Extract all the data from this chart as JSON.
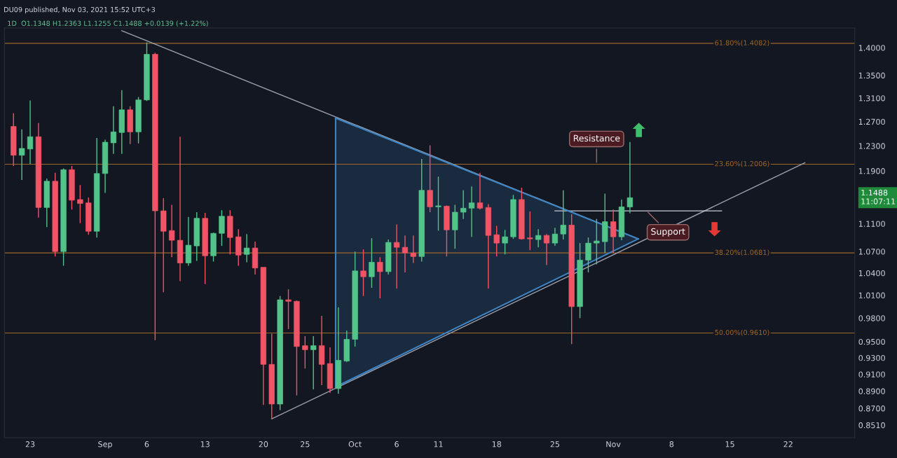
{
  "chart_data": {
    "type": "candlestick",
    "title": "DU09 published, Nov 03, 2021 15:52 UTC+3",
    "subtitle": "1D  O1.1348 H1.2363 L1.1255 C1.1488 +0.0139 (+1.22%)",
    "x": [
      "2021-08-21",
      "2021-08-22",
      "2021-08-23",
      "2021-08-24",
      "2021-08-25",
      "2021-08-26",
      "2021-08-27",
      "2021-08-28",
      "2021-08-29",
      "2021-08-30",
      "2021-08-31",
      "2021-09-01",
      "2021-09-02",
      "2021-09-03",
      "2021-09-04",
      "2021-09-05",
      "2021-09-06",
      "2021-09-07",
      "2021-09-08",
      "2021-09-09",
      "2021-09-10",
      "2021-09-11",
      "2021-09-12",
      "2021-09-13",
      "2021-09-14",
      "2021-09-15",
      "2021-09-16",
      "2021-09-17",
      "2021-09-18",
      "2021-09-19",
      "2021-09-20",
      "2021-09-21",
      "2021-09-22",
      "2021-09-23",
      "2021-09-24",
      "2021-09-25",
      "2021-09-26",
      "2021-09-27",
      "2021-09-28",
      "2021-09-29",
      "2021-09-30",
      "2021-10-01",
      "2021-10-02",
      "2021-10-03",
      "2021-10-04",
      "2021-10-05",
      "2021-10-06",
      "2021-10-07",
      "2021-10-08",
      "2021-10-09",
      "2021-10-10",
      "2021-10-11",
      "2021-10-12",
      "2021-10-13",
      "2021-10-14",
      "2021-10-15",
      "2021-10-16",
      "2021-10-17",
      "2021-10-18",
      "2021-10-19",
      "2021-10-20",
      "2021-10-21",
      "2021-10-22",
      "2021-10-23",
      "2021-10-24",
      "2021-10-25",
      "2021-10-26",
      "2021-10-27",
      "2021-10-28",
      "2021-10-29",
      "2021-10-30",
      "2021-10-31",
      "2021-11-01",
      "2021-11-02",
      "2021-11-03"
    ],
    "ohlc": [
      [
        1.262,
        1.284,
        1.198,
        1.215
      ],
      [
        1.215,
        1.257,
        1.176,
        1.226
      ],
      [
        1.225,
        1.306,
        1.201,
        1.245
      ],
      [
        1.245,
        1.268,
        1.119,
        1.134
      ],
      [
        1.134,
        1.178,
        1.105,
        1.174
      ],
      [
        1.174,
        1.187,
        1.063,
        1.07
      ],
      [
        1.07,
        1.194,
        1.05,
        1.192
      ],
      [
        1.192,
        1.198,
        1.131,
        1.145
      ],
      [
        1.146,
        1.168,
        1.111,
        1.14
      ],
      [
        1.141,
        1.149,
        1.094,
        1.099
      ],
      [
        1.099,
        1.243,
        1.09,
        1.186
      ],
      [
        1.186,
        1.24,
        1.156,
        1.236
      ],
      [
        1.235,
        1.296,
        1.217,
        1.253
      ],
      [
        1.252,
        1.324,
        1.217,
        1.29
      ],
      [
        1.29,
        1.296,
        1.233,
        1.253
      ],
      [
        1.253,
        1.312,
        1.234,
        1.307
      ],
      [
        1.307,
        1.41,
        1.305,
        1.388
      ],
      [
        1.388,
        1.391,
        0.952,
        1.129
      ],
      [
        1.129,
        1.148,
        1.014,
        1.099
      ],
      [
        1.1,
        1.138,
        1.062,
        1.086
      ],
      [
        1.086,
        1.245,
        1.029,
        1.054
      ],
      [
        1.054,
        1.12,
        1.05,
        1.079
      ],
      [
        1.078,
        1.127,
        1.057,
        1.118
      ],
      [
        1.118,
        1.126,
        1.025,
        1.064
      ],
      [
        1.064,
        1.097,
        1.056,
        1.096
      ],
      [
        1.096,
        1.13,
        1.078,
        1.121
      ],
      [
        1.121,
        1.13,
        1.066,
        1.09
      ],
      [
        1.091,
        1.102,
        1.05,
        1.065
      ],
      [
        1.066,
        1.095,
        1.055,
        1.075
      ],
      [
        1.075,
        1.084,
        1.038,
        1.047
      ],
      [
        1.048,
        1.048,
        0.874,
        0.922
      ],
      [
        0.922,
        0.96,
        0.858,
        0.875
      ],
      [
        0.875,
        1.009,
        0.868,
        1.004
      ],
      [
        1.004,
        1.018,
        0.966,
        1.002
      ],
      [
        1.002,
        1.003,
        0.885,
        0.944
      ],
      [
        0.945,
        0.957,
        0.917,
        0.94
      ],
      [
        0.94,
        0.957,
        0.892,
        0.945
      ],
      [
        0.945,
        0.983,
        0.897,
        0.922
      ],
      [
        0.923,
        0.943,
        0.888,
        0.893
      ],
      [
        0.893,
        0.994,
        0.887,
        0.927
      ],
      [
        0.926,
        0.964,
        0.925,
        0.953
      ],
      [
        0.953,
        1.07,
        0.944,
        1.043
      ],
      [
        1.043,
        1.073,
        1.009,
        1.035
      ],
      [
        1.035,
        1.089,
        1.02,
        1.055
      ],
      [
        1.055,
        1.062,
        1.006,
        1.042
      ],
      [
        1.042,
        1.087,
        1.038,
        1.083
      ],
      [
        1.083,
        1.109,
        1.019,
        1.076
      ],
      [
        1.076,
        1.093,
        1.041,
        1.068
      ],
      [
        1.068,
        1.093,
        1.054,
        1.063
      ],
      [
        1.063,
        1.209,
        1.056,
        1.16
      ],
      [
        1.16,
        1.231,
        1.127,
        1.135
      ],
      [
        1.135,
        1.181,
        1.1,
        1.136
      ],
      [
        1.136,
        1.137,
        1.063,
        1.101
      ],
      [
        1.101,
        1.138,
        1.074,
        1.127
      ],
      [
        1.127,
        1.16,
        1.117,
        1.133
      ],
      [
        1.133,
        1.166,
        1.091,
        1.141
      ],
      [
        1.141,
        1.187,
        1.131,
        1.133
      ],
      [
        1.134,
        1.139,
        1.019,
        1.093
      ],
      [
        1.094,
        1.107,
        1.063,
        1.082
      ],
      [
        1.082,
        1.101,
        1.066,
        1.091
      ],
      [
        1.091,
        1.153,
        1.088,
        1.146
      ],
      [
        1.146,
        1.164,
        1.087,
        1.088
      ],
      [
        1.089,
        1.128,
        1.072,
        1.088
      ],
      [
        1.087,
        1.102,
        1.076,
        1.093
      ],
      [
        1.093,
        1.095,
        1.051,
        1.082
      ],
      [
        1.082,
        1.104,
        1.078,
        1.095
      ],
      [
        1.095,
        1.16,
        1.087,
        1.108
      ],
      [
        1.108,
        1.124,
        0.947,
        0.995
      ],
      [
        0.995,
        1.082,
        0.98,
        1.058
      ],
      [
        1.058,
        1.09,
        1.041,
        1.082
      ],
      [
        1.082,
        1.117,
        1.052,
        1.085
      ],
      [
        1.084,
        1.155,
        1.068,
        1.113
      ],
      [
        1.113,
        1.131,
        1.068,
        1.091
      ],
      [
        1.091,
        1.146,
        1.086,
        1.135
      ],
      [
        1.1348,
        1.2363,
        1.1255,
        1.1488
      ]
    ],
    "colors": [
      "#f05466",
      "#52c48a",
      "#52c48a",
      "#f05466",
      "#52c48a",
      "#f05466",
      "#52c48a",
      "#f05466",
      "#f05466",
      "#f05466",
      "#52c48a",
      "#52c48a",
      "#52c48a",
      "#52c48a",
      "#f05466",
      "#52c48a",
      "#52c48a",
      "#f05466",
      "#f05466",
      "#f05466",
      "#f05466",
      "#52c48a",
      "#52c48a",
      "#f05466",
      "#52c48a",
      "#52c48a",
      "#f05466",
      "#f05466",
      "#52c48a",
      "#f05466",
      "#f05466",
      "#f05466",
      "#52c48a",
      "#f05466",
      "#f05466",
      "#f05466",
      "#52c48a",
      "#f05466",
      "#f05466",
      "#52c48a",
      "#52c48a",
      "#52c48a",
      "#f05466",
      "#52c48a",
      "#f05466",
      "#52c48a",
      "#f05466",
      "#f05466",
      "#f05466",
      "#52c48a",
      "#f05466",
      "#52c48a",
      "#f05466",
      "#52c48a",
      "#52c48a",
      "#52c48a",
      "#f05466",
      "#f05466",
      "#f05466",
      "#52c48a",
      "#52c48a",
      "#f05466",
      "#f05466",
      "#52c48a",
      "#f05466",
      "#52c48a",
      "#52c48a",
      "#f05466",
      "#52c48a",
      "#52c48a",
      "#52c48a",
      "#52c48a",
      "#f05466",
      "#52c48a",
      "#52c48a"
    ],
    "series": [
      {
        "type": "line",
        "color": "#9aa0ad",
        "x": [
          "2021-09-03",
          "2021-11-04"
        ],
        "values": [
          1.432,
          1.088
        ]
      },
      {
        "type": "line",
        "color": "#3d85c6",
        "x": [
          "2021-09-28T16:00",
          "2021-11-04"
        ],
        "values": [
          1.276,
          1.088
        ]
      },
      {
        "type": "line",
        "color": "#3d85c6",
        "x": [
          "2021-09-28T16:00",
          "2021-11-04"
        ],
        "values": [
          0.895,
          1.088
        ]
      },
      {
        "type": "line",
        "color": "#3d85c6",
        "x": [
          "2021-09-28T16:00",
          "2021-09-28T16:00"
        ],
        "values": [
          0.895,
          1.276
        ]
      },
      {
        "type": "line",
        "color": "#9aa0ad",
        "x": [
          "2021-09-21",
          "2021-11-24"
        ],
        "values": [
          0.858,
          1.203
        ]
      },
      {
        "type": "line",
        "color": "#c8ccd4",
        "x": [
          "2021-10-25",
          "2021-11-14"
        ],
        "values": [
          1.129,
          1.129
        ]
      }
    ],
    "ref_lines": [
      {
        "axis": "y",
        "value": 1.4082,
        "label": "61.80%(1.4082)",
        "color": "#a0672a"
      },
      {
        "axis": "y",
        "value": 1.2006,
        "label": "23.60%(1.2006)",
        "color": "#a0672a"
      },
      {
        "axis": "y",
        "value": 1.0681,
        "label": "38.20%(1.0681)",
        "color": "#a0672a"
      },
      {
        "axis": "y",
        "value": 0.961,
        "label": "50.00%(0.9610)",
        "color": "#a0672a"
      }
    ],
    "annotations": [
      {
        "text": "Resistance",
        "x": "2021-10-30",
        "y": 1.2006
      },
      {
        "text": "Support",
        "x": "2021-11-05",
        "y": 1.129
      },
      "1.1488\n11:07:11"
    ],
    "log": true,
    "xlim": [
      "2021-08-19T22:00",
      "2021-11-30"
    ],
    "ylim": [
      0.837,
      1.437
    ],
    "xticks": [
      {
        "value": "2021-08-23",
        "label": "23"
      },
      {
        "value": "2021-09-01",
        "label": "Sep"
      },
      {
        "value": "2021-09-06",
        "label": "6"
      },
      {
        "value": "2021-09-13",
        "label": "13"
      },
      {
        "value": "2021-09-20",
        "label": "20"
      },
      {
        "value": "2021-09-25",
        "label": "25"
      },
      {
        "value": "2021-10-01",
        "label": "Oct"
      },
      {
        "value": "2021-10-06",
        "label": "6"
      },
      {
        "value": "2021-10-11",
        "label": "11"
      },
      {
        "value": "2021-10-18",
        "label": "18"
      },
      {
        "value": "2021-10-25",
        "label": "25"
      },
      {
        "value": "2021-11-01",
        "label": "Nov"
      },
      {
        "value": "2021-11-08",
        "label": "8"
      },
      {
        "value": "2021-11-15",
        "label": "15"
      },
      {
        "value": "2021-11-22",
        "label": "22"
      }
    ],
    "yticks": [
      {
        "value": 1.4,
        "label": "1.4000"
      },
      {
        "value": 1.35,
        "label": "1.3500"
      },
      {
        "value": 1.31,
        "label": "1.3100"
      },
      {
        "value": 1.27,
        "label": "1.2700"
      },
      {
        "value": 1.23,
        "label": "1.2300"
      },
      {
        "value": 1.19,
        "label": "1.1900"
      },
      {
        "value": 1.11,
        "label": "1.1100"
      },
      {
        "value": 1.07,
        "label": "1.0700"
      },
      {
        "value": 1.04,
        "label": "1.0400"
      },
      {
        "value": 1.01,
        "label": "1.0100"
      },
      {
        "value": 0.98,
        "label": "0.9800"
      },
      {
        "value": 0.95,
        "label": "0.9500"
      },
      {
        "value": 0.93,
        "label": "0.9300"
      },
      {
        "value": 0.91,
        "label": "0.9100"
      },
      {
        "value": 0.89,
        "label": "0.8900"
      },
      {
        "value": 0.87,
        "label": "0.8700"
      },
      {
        "value": 0.851,
        "label": "0.8510"
      }
    ],
    "grid": false,
    "legend": false
  }
}
